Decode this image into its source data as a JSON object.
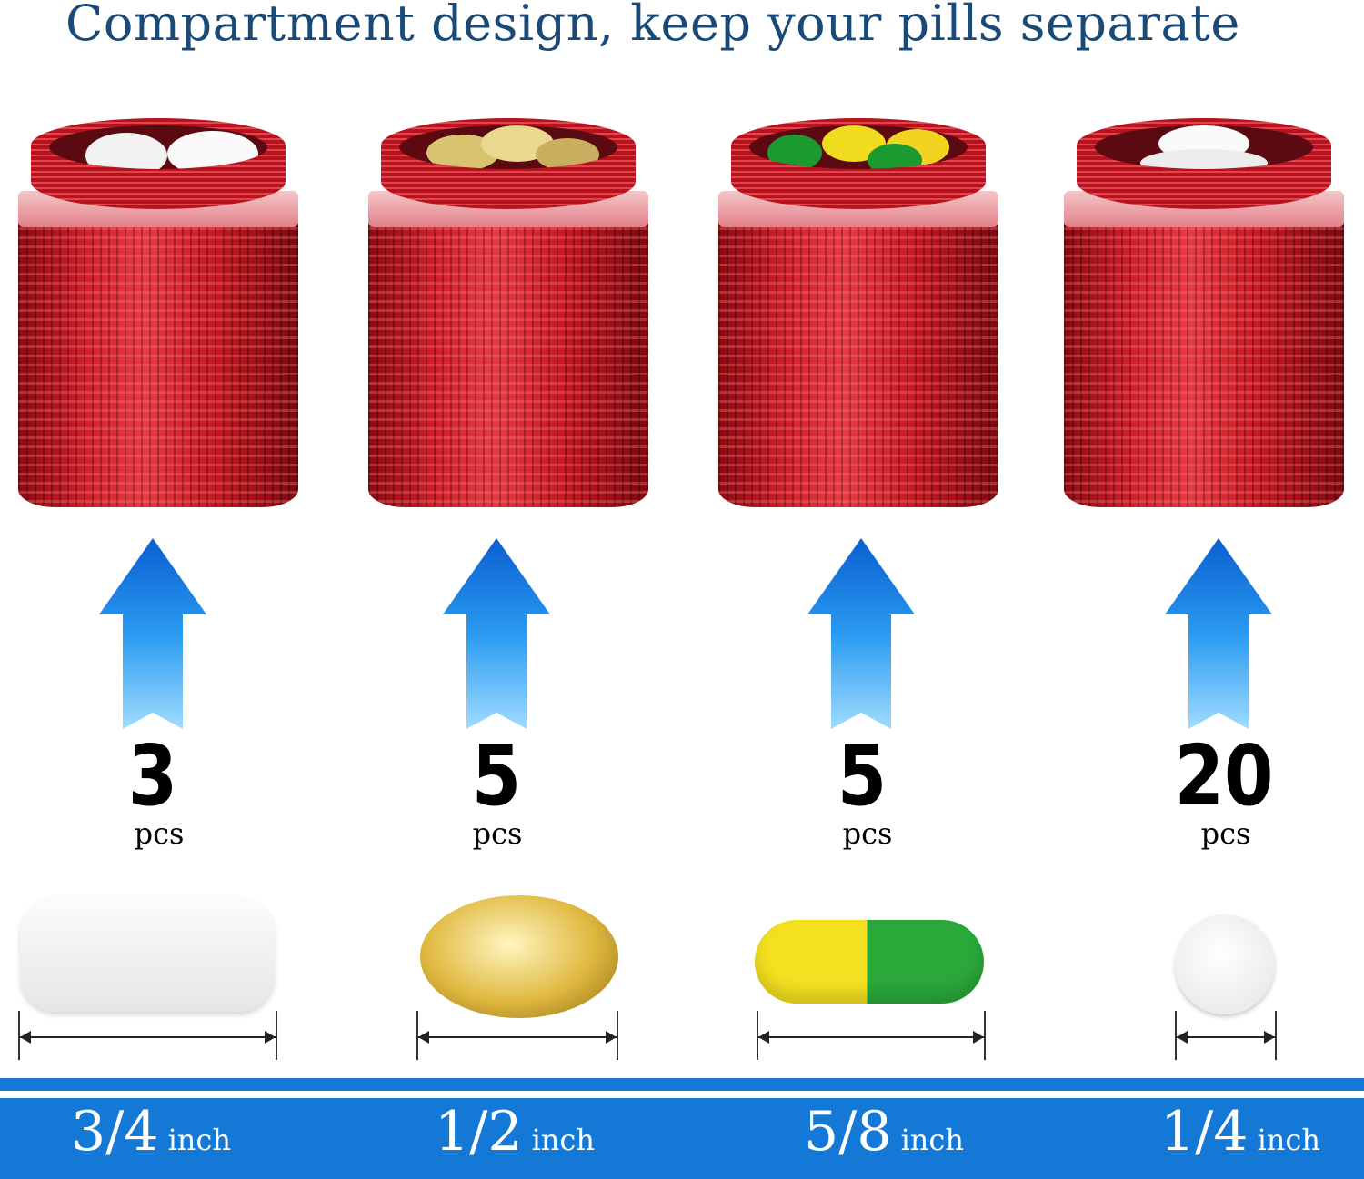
{
  "title": "Compartment design, keep your pills separate",
  "accent_color": "#1479d6",
  "can_color": "#c81822",
  "items": [
    {
      "count": "3",
      "unit": "pcs",
      "size": "3/4",
      "size_unit": "inch",
      "pill": "white oblong tablet"
    },
    {
      "count": "5",
      "unit": "pcs",
      "size": "1/2",
      "size_unit": "inch",
      "pill": "softgel capsule"
    },
    {
      "count": "5",
      "unit": "pcs",
      "size": "5/8",
      "size_unit": "inch",
      "pill": "yellow-green capsule"
    },
    {
      "count": "20",
      "unit": "pcs",
      "size": "1/4",
      "size_unit": "inch",
      "pill": "small round tablet"
    }
  ]
}
